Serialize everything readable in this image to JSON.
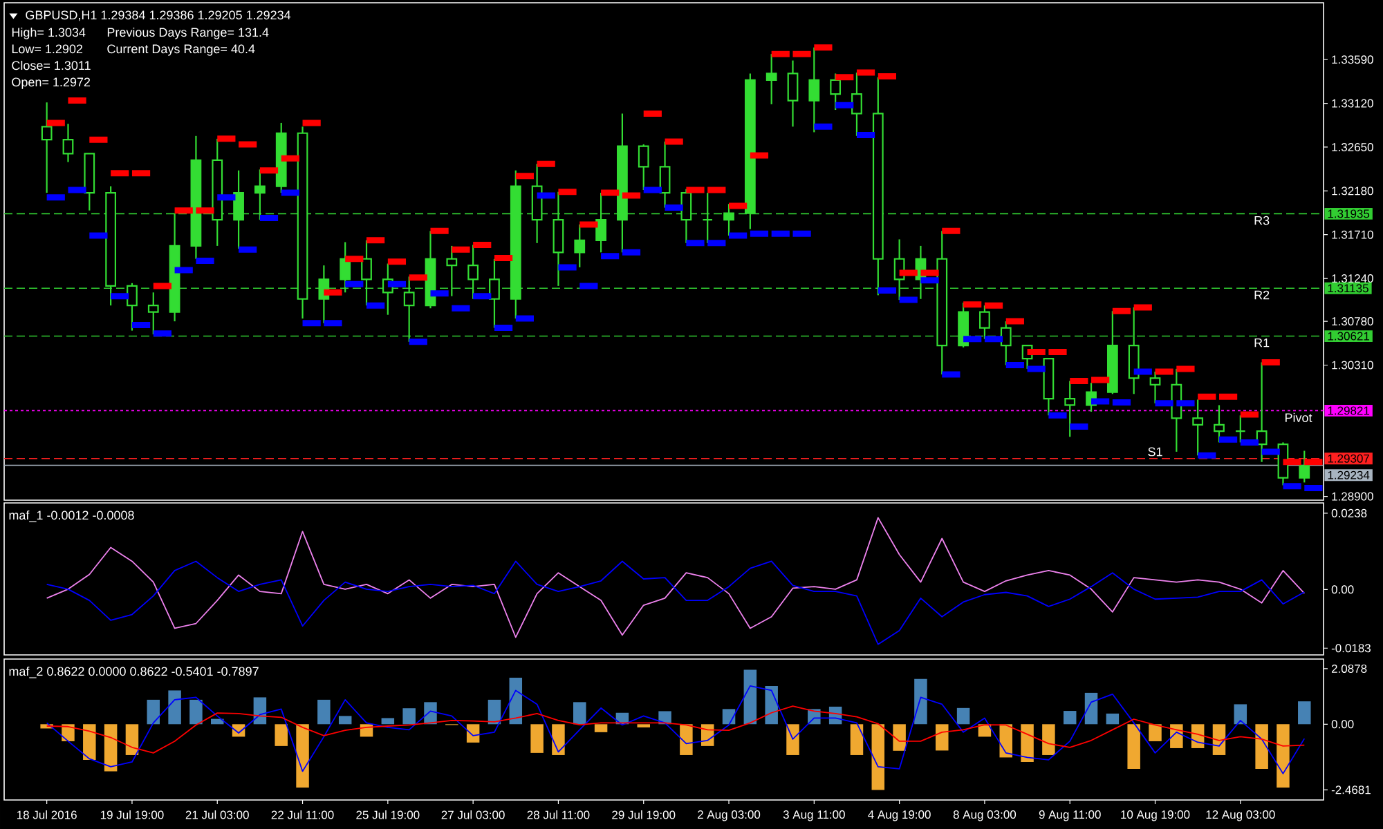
{
  "chart_data": [
    {
      "type": "candlestick",
      "title": "GBPUSD,H1 1.29384 1.29386 1.29205 1.29234",
      "annotations": [
        "High= 1.3034",
        "Previous Days Range= 131.4",
        "Low= 1.2902",
        "Current Days Range= 40.4",
        "Close= 1.3011",
        "Open= 1.2972",
        "1.31935",
        "1.31135",
        "1.30621",
        "1.29821",
        "1.29307",
        "1.29234"
      ],
      "categories": [
        null,
        null,
        null,
        null,
        null,
        null,
        null,
        null,
        null,
        null,
        null,
        null,
        null,
        null,
        null,
        null,
        null,
        null,
        null,
        null,
        null,
        null,
        null,
        null,
        null,
        null,
        null,
        null,
        null,
        null,
        null,
        null,
        null,
        null,
        null,
        null,
        null,
        null,
        null,
        null,
        null,
        null,
        null,
        null,
        null,
        null,
        null,
        null,
        null,
        null,
        null,
        null,
        null,
        null,
        null,
        null,
        null,
        null,
        null,
        null
      ],
      "color": "#33dd33",
      "ohlc": [
        [
          1.3287,
          1.3313,
          1.3216,
          1.3273
        ],
        [
          1.3273,
          1.329,
          1.3249,
          1.3258
        ],
        [
          1.3258,
          1.3258,
          1.3197,
          1.3216
        ],
        [
          1.3216,
          1.3223,
          1.3095,
          1.3116
        ],
        [
          1.3116,
          1.3119,
          1.3068,
          1.3095
        ],
        [
          1.3095,
          1.3109,
          1.3064,
          1.3088
        ],
        [
          1.3088,
          1.3194,
          1.3078,
          1.3159
        ],
        [
          1.3159,
          1.3277,
          1.3145,
          1.3251
        ],
        [
          1.3251,
          1.3274,
          1.3159,
          1.3187
        ],
        [
          1.3187,
          1.324,
          1.3156,
          1.3216
        ],
        [
          1.3216,
          1.3241,
          1.3187,
          1.3223
        ],
        [
          1.3223,
          1.3291,
          1.3216,
          1.328
        ],
        [
          1.328,
          1.3287,
          1.3081,
          1.3102
        ],
        [
          1.3102,
          1.3138,
          1.3076,
          1.3123
        ],
        [
          1.3123,
          1.3163,
          1.3109,
          1.3145
        ],
        [
          1.3145,
          1.3165,
          1.3095,
          1.3123
        ],
        [
          1.3123,
          1.314,
          1.3085,
          1.3109
        ],
        [
          1.3109,
          1.3126,
          1.3056,
          1.3095
        ],
        [
          1.3095,
          1.3175,
          1.3092,
          1.3145
        ],
        [
          1.3145,
          1.3159,
          1.3105,
          1.3138
        ],
        [
          1.3138,
          1.316,
          1.3102,
          1.3123
        ],
        [
          1.3123,
          1.3145,
          1.3071,
          1.3102
        ],
        [
          1.3102,
          1.324,
          1.3081,
          1.3223
        ],
        [
          1.3223,
          1.3247,
          1.3162,
          1.3187
        ],
        [
          1.3187,
          1.3217,
          1.3116,
          1.3152
        ],
        [
          1.3152,
          1.3182,
          1.3136,
          1.3165
        ],
        [
          1.3165,
          1.3216,
          1.3152,
          1.3187
        ],
        [
          1.3187,
          1.3301,
          1.3152,
          1.3266
        ],
        [
          1.3266,
          1.3268,
          1.3219,
          1.3244
        ],
        [
          1.3244,
          1.3271,
          1.32,
          1.3216
        ],
        [
          1.3216,
          1.322,
          1.3162,
          1.3187
        ],
        [
          1.3187,
          1.3216,
          1.3162,
          1.3187
        ],
        [
          1.3187,
          1.3204,
          1.317,
          1.3194
        ],
        [
          1.3194,
          1.3344,
          1.3177,
          1.3337
        ],
        [
          1.3337,
          1.3365,
          1.3311,
          1.3344
        ],
        [
          1.3344,
          1.3358,
          1.3287,
          1.3315
        ],
        [
          1.3315,
          1.3372,
          1.3281,
          1.3337
        ],
        [
          1.3337,
          1.3344,
          1.3305,
          1.3322
        ],
        [
          1.3322,
          1.3345,
          1.3277,
          1.3301
        ],
        [
          1.3301,
          1.334,
          1.3106,
          1.3145
        ],
        [
          1.3145,
          1.3166,
          1.3101,
          1.3123
        ],
        [
          1.3123,
          1.3159,
          1.3102,
          1.3145
        ],
        [
          1.3145,
          1.3175,
          1.3021,
          1.3052
        ],
        [
          1.3052,
          1.3098,
          1.305,
          1.3088
        ],
        [
          1.3088,
          1.3095,
          1.3059,
          1.3071
        ],
        [
          1.3071,
          1.3078,
          1.3031,
          1.3052
        ],
        [
          1.3052,
          1.3052,
          1.3027,
          1.3038
        ],
        [
          1.3038,
          1.3038,
          1.2977,
          1.2995
        ],
        [
          1.2995,
          1.3014,
          1.2954,
          1.2988
        ],
        [
          1.2988,
          1.3012,
          1.2981,
          1.3002
        ],
        [
          1.3002,
          1.3089,
          1.3,
          1.3052
        ],
        [
          1.3052,
          1.3093,
          1.3,
          1.3017
        ],
        [
          1.3017,
          1.3024,
          1.299,
          1.301
        ],
        [
          1.301,
          1.3027,
          1.2938,
          1.2974
        ],
        [
          1.2974,
          1.2994,
          1.2934,
          1.2967
        ],
        [
          1.2967,
          1.2988,
          1.2948,
          1.296
        ],
        [
          1.296,
          1.2977,
          1.2948,
          1.296
        ],
        [
          1.296,
          1.3034,
          1.2927,
          1.2946
        ],
        [
          1.2946,
          1.2948,
          1.2902,
          1.291
        ],
        [
          1.291,
          1.2939,
          1.2905,
          1.2923
        ]
      ],
      "series": [
        {
          "type": "step",
          "color": "#ff0000",
          "values": [
            1.3291,
            1.3315,
            1.3273,
            1.3237,
            1.3237,
            1.3116,
            1.3197,
            1.3197,
            1.3274,
            1.3268,
            1.324,
            1.3253,
            1.3291,
            1.3109,
            1.3145,
            1.3165,
            1.3142,
            1.3125,
            1.3175,
            1.3155,
            1.316,
            1.3146,
            1.3234,
            1.3247,
            1.3217,
            1.3182,
            1.3216,
            1.3213,
            1.3301,
            1.3271,
            1.3219,
            1.3219,
            1.3202,
            1.3256,
            1.3365,
            1.3365,
            1.3372,
            1.334,
            1.3345,
            1.3341,
            1.313,
            1.313,
            1.3175,
            1.3096,
            1.3095,
            1.3078,
            1.3045,
            1.3045,
            1.3014,
            1.3015,
            1.3089,
            1.3093,
            1.3024,
            1.3027,
            1.2997,
            1.2997,
            1.2978,
            1.3034,
            1.2927,
            1.2927
          ]
        },
        {
          "type": "step",
          "color": "#0000ff",
          "values": [
            1.3211,
            1.3219,
            1.317,
            1.3105,
            1.3074,
            1.3065,
            1.3133,
            1.3143,
            1.3211,
            1.3155,
            1.3189,
            1.3216,
            1.3076,
            1.3076,
            1.3118,
            1.3095,
            1.3118,
            1.3056,
            1.3108,
            1.3092,
            1.3105,
            1.3071,
            1.3081,
            1.3213,
            1.3136,
            1.3116,
            1.3148,
            1.3152,
            1.3219,
            1.32,
            1.3162,
            1.3162,
            1.317,
            1.3172,
            1.3172,
            1.3172,
            1.3287,
            1.331,
            1.3278,
            1.3111,
            1.3101,
            1.3122,
            1.3021,
            1.3059,
            1.3059,
            1.3031,
            1.3027,
            1.2977,
            1.2965,
            1.2992,
            1.2991,
            1.3024,
            1.299,
            1.299,
            1.2934,
            1.2951,
            1.2948,
            1.2938,
            1.2901,
            1.2899
          ]
        }
      ],
      "ylim": [
        1.2886,
        1.342
      ],
      "yticks": [
        {
          "value": 1.289,
          "label": "1.28900"
        },
        {
          "value": 1.3031,
          "label": "1.30310"
        },
        {
          "value": 1.3078,
          "label": "1.30780"
        },
        {
          "value": 1.3124,
          "label": "1.31240"
        },
        {
          "value": 1.3171,
          "label": "1.31710"
        },
        {
          "value": 1.3218,
          "label": "1.32180"
        },
        {
          "value": 1.3265,
          "label": "1.32650"
        },
        {
          "value": 1.3312,
          "label": "1.33120"
        },
        {
          "value": 1.3359,
          "label": "1.33590"
        }
      ],
      "ref_lines": [
        {
          "axis": "y",
          "value": 1.31935,
          "label": "R3",
          "color": "#32cd32",
          "line_style": "dashed"
        },
        {
          "axis": "y",
          "value": 1.31135,
          "label": "R2",
          "color": "#32cd32",
          "line_style": "dashed"
        },
        {
          "axis": "y",
          "value": 1.30621,
          "label": "R1",
          "color": "#32cd32",
          "line_style": "dashed"
        },
        {
          "axis": "y",
          "value": 1.29821,
          "label": "Pivot",
          "color": "#ff00ff",
          "line_style": "dotted"
        },
        {
          "axis": "y",
          "value": 1.29307,
          "label": "S1",
          "color": "#ff2020",
          "line_style": "dashed"
        },
        {
          "axis": "y",
          "value": 1.29234,
          "color": "#a8b4c0",
          "line_style": "solid"
        }
      ]
    },
    {
      "type": "line",
      "title": "maf_1 -0.0012 -0.0008",
      "categories": [
        null,
        null,
        null,
        null,
        null,
        null,
        null,
        null,
        null,
        null,
        null,
        null,
        null,
        null,
        null,
        null,
        null,
        null,
        null,
        null,
        null,
        null,
        null,
        null,
        null,
        null,
        null,
        null,
        null,
        null,
        null,
        null,
        null,
        null,
        null,
        null,
        null,
        null,
        null,
        null,
        null,
        null,
        null,
        null,
        null,
        null,
        null,
        null,
        null,
        null,
        null,
        null,
        null,
        null,
        null,
        null,
        null,
        null,
        null,
        null
      ],
      "series": [
        {
          "color": "#ee82ee",
          "values": [
            -0.0027,
            0.0001,
            0.0047,
            0.0131,
            0.0088,
            0.0023,
            -0.0121,
            -0.0106,
            -0.0034,
            0.0045,
            -0.0006,
            -0.0013,
            0.0181,
            0.0016,
            0.0001,
            0.0016,
            -0.0013,
            0.003,
            -0.0027,
            0.0016,
            0.0009,
            0.0016,
            -0.0149,
            -0.0013,
            0.0052,
            0.0009,
            -0.0034,
            -0.0142,
            -0.0049,
            -0.0027,
            0.0052,
            0.0037,
            -0.0013,
            -0.0121,
            -0.0085,
            0.0004,
            0.0009,
            0.0001,
            0.003,
            0.0224,
            0.0109,
            0.0023,
            0.0159,
            0.0023,
            -0.0006,
            0.0027,
            0.0045,
            0.0059,
            0.0045,
            0.0001,
            -0.007,
            0.0037,
            0.003,
            0.0023,
            0.003,
            0.0023,
            0.0001,
            -0.0042,
            0.0059,
            -0.0012
          ]
        },
        {
          "color": "#0000ff",
          "values": [
            0.0016,
            0.0001,
            -0.0034,
            -0.0096,
            -0.0078,
            -0.002,
            0.0059,
            0.0088,
            0.0037,
            -0.0006,
            0.0016,
            0.003,
            -0.0114,
            -0.0034,
            0.0023,
            0.0001,
            -0.0006,
            0.0009,
            0.0016,
            0.0009,
            0.0013,
            -0.0013,
            0.0088,
            0.0016,
            -0.0006,
            0.0009,
            0.0027,
            0.0088,
            0.0033,
            0.0037,
            -0.0034,
            -0.0034,
            0.0009,
            0.0066,
            0.0088,
            0.0013,
            -0.0006,
            -0.0006,
            -0.002,
            -0.0171,
            -0.0128,
            -0.0027,
            -0.0085,
            -0.0039,
            -0.0016,
            -0.0009,
            -0.002,
            -0.0053,
            -0.003,
            0.0009,
            0.0052,
            0.0001,
            -0.003,
            -0.0027,
            -0.0024,
            -0.0006,
            -0.0006,
            0.003,
            -0.0045,
            -0.0008
          ]
        }
      ],
      "ylim": [
        -0.0204,
        0.027
      ],
      "yticks": [
        -0.0183,
        {
          "value": 0,
          "label": "0.00"
        },
        0.0238
      ]
    },
    {
      "type": "bar",
      "title": "maf_2 0.8622 0.0000 0.8622 -0.5401 -0.7897",
      "categories": [
        "18 Jul 2016",
        null,
        null,
        null,
        "19 Jul 19:00",
        null,
        null,
        null,
        "21 Jul 03:00",
        null,
        null,
        null,
        "22 Jul 11:00",
        null,
        null,
        null,
        "25 Jul 19:00",
        null,
        null,
        null,
        "27 Jul 03:00",
        null,
        null,
        null,
        "28 Jul 11:00",
        null,
        null,
        null,
        "29 Jul 19:00",
        null,
        null,
        null,
        "2 Aug 03:00",
        null,
        null,
        null,
        "3 Aug 11:00",
        null,
        null,
        null,
        "4 Aug 19:00",
        null,
        null,
        null,
        "8 Aug 03:00",
        null,
        null,
        null,
        "9 Aug 11:00",
        null,
        null,
        null,
        "10 Aug 19:00",
        null,
        null,
        null,
        "12 Aug 03:00",
        null,
        null,
        null
      ],
      "series": [
        {
          "type": "bar",
          "values": [
            -0.16,
            -0.64,
            -1.34,
            -1.77,
            -1.16,
            0.92,
            1.27,
            0.92,
            0.2,
            -0.47,
            1.01,
            -0.82,
            -2.38,
            0.92,
            0.31,
            -0.47,
            0.23,
            0.6,
            0.83,
            -0.03,
            -0.69,
            0.92,
            1.75,
            -1.08,
            -1.16,
            0.83,
            -0.3,
            0.43,
            -0.12,
            0.49,
            -1.16,
            -0.82,
            0.57,
            2.05,
            1.44,
            -1.16,
            0.57,
            0.66,
            -1.16,
            -2.47,
            -1.0,
            1.7,
            -0.99,
            0.61,
            -0.47,
            -1.25,
            -1.42,
            -1.16,
            0.5,
            1.18,
            0.4,
            -1.68,
            -0.64,
            -0.9,
            -0.9,
            -1.16,
            0.75,
            -1.68,
            -2.38,
            0.86
          ],
          "colors": [
            "#f0a830",
            "#f0a830",
            "#f0a830",
            "#f0a830",
            "#f0a830",
            "#4682b4",
            "#4682b4",
            "#4682b4",
            "#4682b4",
            "#f0a830",
            "#4682b4",
            "#f0a830",
            "#f0a830",
            "#4682b4",
            "#4682b4",
            "#f0a830",
            "#4682b4",
            "#4682b4",
            "#4682b4",
            "#f0a830",
            "#f0a830",
            "#4682b4",
            "#4682b4",
            "#f0a830",
            "#f0a830",
            "#4682b4",
            "#f0a830",
            "#4682b4",
            "#f0a830",
            "#4682b4",
            "#f0a830",
            "#f0a830",
            "#4682b4",
            "#4682b4",
            "#4682b4",
            "#f0a830",
            "#4682b4",
            "#4682b4",
            "#f0a830",
            "#f0a830",
            "#f0a830",
            "#4682b4",
            "#f0a830",
            "#4682b4",
            "#f0a830",
            "#f0a830",
            "#f0a830",
            "#f0a830",
            "#4682b4",
            "#4682b4",
            "#4682b4",
            "#f0a830",
            "#f0a830",
            "#f0a830",
            "#f0a830",
            "#f0a830",
            "#4682b4",
            "#f0a830",
            "#f0a830",
            "#4682b4"
          ]
        },
        {
          "type": "line",
          "color": "#0000ff",
          "values": [
            0.05,
            -0.64,
            -1.3,
            -1.6,
            -1.42,
            0.05,
            0.92,
            1.01,
            0.31,
            -0.33,
            0.36,
            0.57,
            -1.77,
            -0.47,
            0.92,
            0.05,
            -0.12,
            -0.21,
            0.49,
            0.31,
            -0.43,
            -0.3,
            1.27,
            0.75,
            -1.04,
            -0.21,
            0.61,
            -0.03,
            0.31,
            0.05,
            -0.73,
            -0.61,
            -0.03,
            1.44,
            1.27,
            -0.56,
            0.23,
            0.23,
            0.05,
            -1.6,
            -1.68,
            1.01,
            0.75,
            -0.3,
            0.23,
            -1.08,
            -1.25,
            -1.34,
            -0.64,
            0.83,
            1.13,
            0.05,
            -1.08,
            -0.3,
            -0.68,
            -0.82,
            0.14,
            -0.56,
            -1.86,
            -0.54
          ]
        },
        {
          "type": "line",
          "color": "#ff0000",
          "values": [
            -0.07,
            -0.09,
            -0.26,
            -0.5,
            -0.87,
            -1.08,
            -0.64,
            -0.03,
            0.42,
            0.4,
            0.31,
            0.26,
            -0.12,
            -0.43,
            -0.23,
            -0.12,
            -0.07,
            -0.03,
            0.05,
            0.14,
            0.12,
            0.09,
            0.23,
            0.4,
            0.14,
            -0.02,
            0.05,
            0.05,
            0.05,
            0.05,
            -0.03,
            -0.21,
            -0.23,
            0.05,
            0.43,
            0.68,
            0.49,
            0.4,
            0.28,
            0.02,
            -0.64,
            -0.64,
            -0.3,
            -0.21,
            -0.02,
            -0.03,
            -0.38,
            -0.73,
            -0.87,
            -0.61,
            -0.21,
            0.19,
            -0.03,
            -0.21,
            -0.38,
            -0.61,
            -0.47,
            -0.56,
            -0.82,
            -0.79
          ]
        }
      ],
      "ylim": [
        -2.85,
        2.45
      ],
      "yticks": [
        -2.4681,
        {
          "value": 0,
          "label": "0.00"
        },
        2.0878
      ]
    }
  ]
}
